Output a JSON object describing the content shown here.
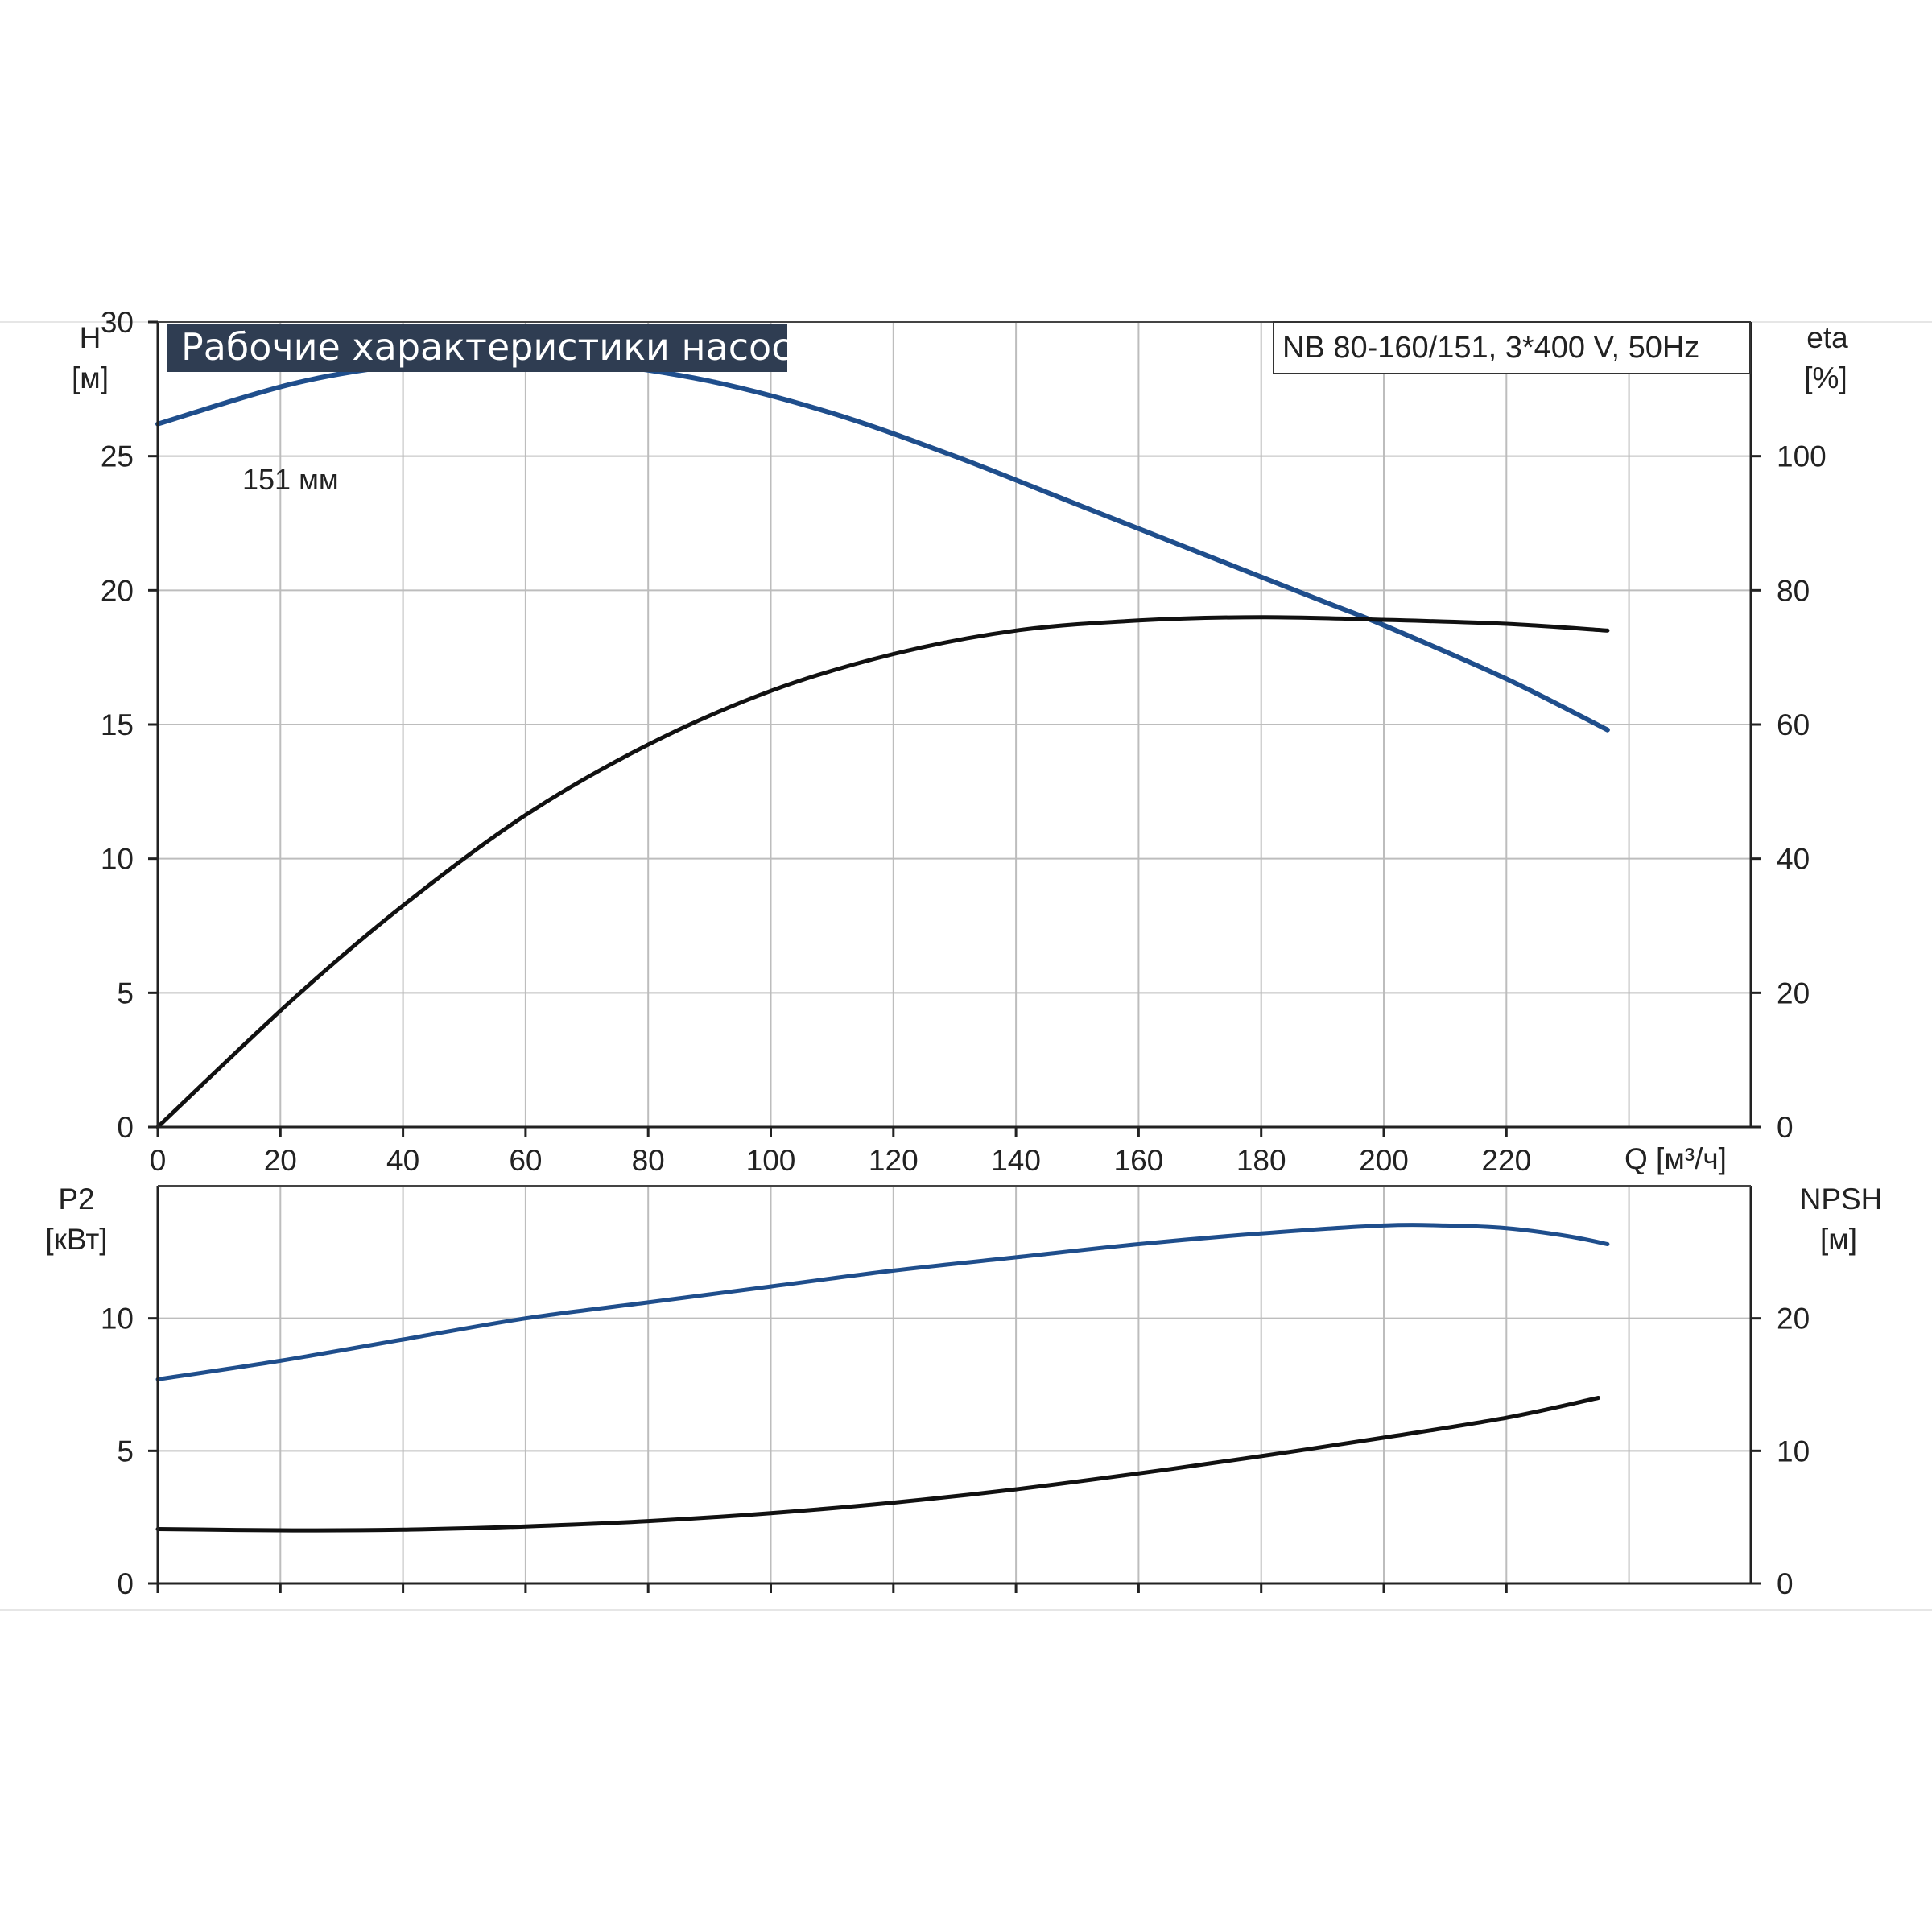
{
  "title": "Рабочие характеристики насоса",
  "model": "NB 80-160/151, 3*400 V, 50Hz",
  "colors": {
    "blue": "#1f4e8c",
    "black": "#111111",
    "grid": "#bdbdbd",
    "title_bg": "#2f3d52"
  },
  "chart_data": [
    {
      "type": "line",
      "name": "head-efficiency",
      "xlabel": "Q [м³/ч]",
      "xlim": [
        0,
        240
      ],
      "x_ticks": [
        "0",
        "20",
        "40",
        "60",
        "80",
        "100",
        "120",
        "140",
        "160",
        "180",
        "200",
        "220"
      ],
      "grid": true,
      "left_axis": {
        "label": "H",
        "unit": "[м]",
        "lim": [
          0,
          30
        ],
        "ticks": [
          "0",
          "5",
          "10",
          "15",
          "20",
          "25",
          "30"
        ]
      },
      "right_axis": {
        "label": "eta",
        "unit": "[%]",
        "lim": [
          0,
          120
        ],
        "ticks": [
          "0",
          "20",
          "40",
          "60",
          "80",
          "100"
        ]
      },
      "annotations": [
        {
          "text": "151 мм",
          "x": 14,
          "y": 28.0
        }
      ],
      "series": [
        {
          "axis": "left",
          "color": "#1f4e8c",
          "x": [
            0,
            22,
            40,
            55,
            70,
            90,
            110,
            130,
            150,
            170,
            190,
            200,
            220,
            236.5
          ],
          "y": [
            26.2,
            27.7,
            28.4,
            28.6,
            28.5,
            27.8,
            26.6,
            25.0,
            23.2,
            21.4,
            19.6,
            18.7,
            16.7,
            14.8
          ]
        },
        {
          "axis": "right",
          "color": "#111111",
          "x": [
            0,
            22,
            40,
            60,
            80,
            100,
            120,
            140,
            160,
            180,
            200,
            220,
            236.5
          ],
          "y": [
            0,
            19,
            33,
            46.5,
            57,
            65,
            70.5,
            74,
            75.5,
            76,
            75.6,
            75,
            74
          ]
        }
      ]
    },
    {
      "type": "line",
      "name": "power-npsh",
      "xlim": [
        0,
        240
      ],
      "grid": true,
      "left_axis": {
        "label": "P2",
        "unit": "[кВт]",
        "lim": [
          0,
          15
        ],
        "ticks": [
          "0",
          "5",
          "10"
        ]
      },
      "right_axis": {
        "label": "NPSH",
        "unit": "[м]",
        "lim": [
          0,
          30
        ],
        "ticks": [
          "0",
          "10",
          "20"
        ]
      },
      "series": [
        {
          "axis": "left",
          "color": "#1f4e8c",
          "x": [
            0,
            20,
            40,
            60,
            80,
            100,
            120,
            140,
            160,
            180,
            200,
            210,
            220,
            230,
            236.5
          ],
          "y": [
            7.7,
            8.4,
            9.2,
            10.0,
            10.6,
            11.2,
            11.8,
            12.3,
            12.8,
            13.2,
            13.5,
            13.5,
            13.4,
            13.1,
            12.8
          ]
        },
        {
          "axis": "right",
          "color": "#111111",
          "x": [
            0,
            22,
            40,
            60,
            80,
            100,
            120,
            140,
            160,
            180,
            200,
            220,
            235
          ],
          "y": [
            4.1,
            4.0,
            4.05,
            4.3,
            4.7,
            5.3,
            6.1,
            7.1,
            8.3,
            9.6,
            11.0,
            12.5,
            14.0
          ]
        }
      ]
    }
  ]
}
